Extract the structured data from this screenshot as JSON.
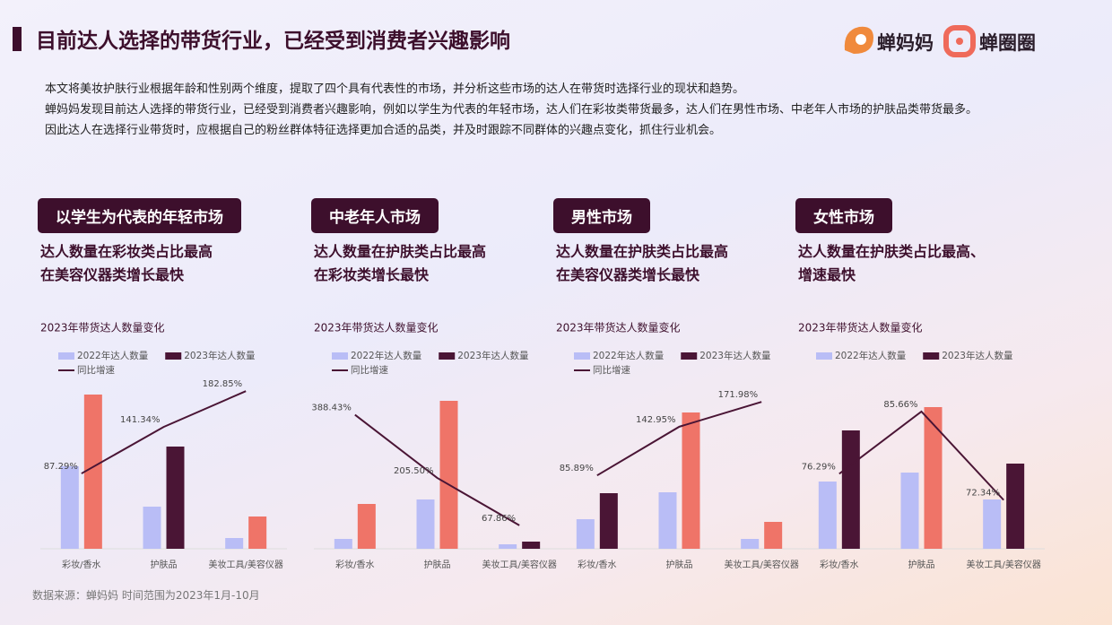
{
  "header": {
    "title": "目前达人选择的带货行业，已经受到消费者兴趣影响",
    "logos": [
      "蝉妈妈",
      "蝉圈圈"
    ]
  },
  "intro": [
    "本文将美妆护肤行业根据年龄和性别两个维度，提取了四个具有代表性的市场，并分析这些市场的达人在带货时选择行业的现状和趋势。",
    "蝉妈妈发现目前达人选择的带货行业，已经受到消费者兴趣影响，例如以学生为代表的年轻市场，达人们在彩妆类带货最多，达人们在男性市场、中老年人市场的护肤品类带货最多。",
    "因此达人在选择行业带货时，应根据自己的粉丝群体特征选择更加合适的品类，并及时跟踪不同群体的兴趣点变化，抓住行业机会。"
  ],
  "sections": [
    {
      "label": "以学生为代表的年轻市场",
      "subtitle": [
        "达人数量在彩妆类占比最高",
        "在美容仪器类增长最快"
      ]
    },
    {
      "label": "中老年人市场",
      "subtitle": [
        "达人数量在护肤类占比最高",
        "在彩妆类增长最快"
      ]
    },
    {
      "label": "男性市场",
      "subtitle": [
        "达人数量在护肤类占比最高",
        "在美容仪器类增长最快"
      ]
    },
    {
      "label": "女性市场",
      "subtitle": [
        "达人数量在护肤类占比最高、",
        "增速最快"
      ]
    }
  ],
  "chart_data": [
    {
      "type": "bar",
      "title": "2023年带货达人数量变化",
      "categories": [
        "彩妆/香水",
        "护肤品",
        "美妆工具/美容仪器"
      ],
      "series": [
        {
          "name": "2022年达人数量",
          "color": "#b9bdf6",
          "values": [
            92,
            47,
            12
          ]
        },
        {
          "name": "2023年达人数量",
          "color": "#4a1535",
          "bar_colors": [
            "#ef7468",
            "#4a1535",
            "#ef7468"
          ],
          "values": [
            172,
            114,
            36
          ]
        },
        {
          "name": "同比增速",
          "type": "line",
          "axis": "y2",
          "color": "#4a1535",
          "values": [
            87.29,
            141.34,
            182.85
          ],
          "value_labels": [
            "87.29%",
            "141.34%",
            "182.85%"
          ]
        }
      ],
      "ylim": [
        0,
        200
      ],
      "y2lim": [
        0,
        208
      ]
    },
    {
      "type": "bar",
      "title": "2023年带货达人数量变化",
      "categories": [
        "彩妆/香水",
        "护肤品",
        "美妆工具/美容仪器"
      ],
      "series": [
        {
          "name": "2022年达人数量",
          "color": "#b9bdf6",
          "values": [
            11,
            55,
            5
          ]
        },
        {
          "name": "2023年达人数量",
          "color": "#4a1535",
          "bar_colors": [
            "#ef7468",
            "#ef7468",
            "#4a1535"
          ],
          "values": [
            50,
            165,
            8
          ]
        },
        {
          "name": "同比增速",
          "type": "line",
          "axis": "y2",
          "color": "#4a1535",
          "values": [
            388.43,
            205.5,
            67.86
          ],
          "value_labels": [
            "388.43%",
            "205.50%",
            "67.86%"
          ]
        }
      ],
      "ylim": [
        0,
        200
      ],
      "y2lim": [
        0,
        520
      ]
    },
    {
      "type": "bar",
      "title": "2023年带货达人数量变化",
      "categories": [
        "彩妆/香水",
        "护肤品",
        "美妆工具/美容仪器"
      ],
      "series": [
        {
          "name": "2022年达人数量",
          "color": "#b9bdf6",
          "values": [
            33,
            63,
            11
          ]
        },
        {
          "name": "2023年达人数量",
          "color": "#4a1535",
          "bar_colors": [
            "#4a1535",
            "#ef7468",
            "#ef7468"
          ],
          "values": [
            62,
            152,
            30
          ]
        },
        {
          "name": "同比增速",
          "type": "line",
          "axis": "y2",
          "color": "#4a1535",
          "values": [
            85.89,
            142.95,
            171.98
          ],
          "value_labels": [
            "85.89%",
            "142.95%",
            "171.98%"
          ]
        }
      ],
      "ylim": [
        0,
        200
      ],
      "y2lim": [
        0,
        210
      ]
    },
    {
      "type": "bar",
      "title": "2023年带货达人数量变化",
      "categories": [
        "彩妆/香水",
        "护肤品",
        "美妆工具/美容仪器"
      ],
      "series": [
        {
          "name": "2022年达人数量",
          "color": "#b9bdf6",
          "values": [
            75,
            85,
            55
          ]
        },
        {
          "name": "2023年达人数量",
          "color": "#4a1535",
          "bar_colors": [
            "#4a1535",
            "#ef7468",
            "#4a1535"
          ],
          "values": [
            132,
            158,
            95
          ]
        },
        {
          "type": "line",
          "axis": "y2",
          "color": "#4a1535",
          "values": [
            76.29,
            85.66,
            72.34
          ],
          "value_labels": [
            "76.29%",
            "85.66%",
            "72.34%"
          ]
        }
      ],
      "ylim": [
        0,
        200
      ],
      "y2lim": [
        65,
        92
      ]
    }
  ],
  "source": "数据来源：蝉妈妈 时间范围为2023年1月-10月"
}
